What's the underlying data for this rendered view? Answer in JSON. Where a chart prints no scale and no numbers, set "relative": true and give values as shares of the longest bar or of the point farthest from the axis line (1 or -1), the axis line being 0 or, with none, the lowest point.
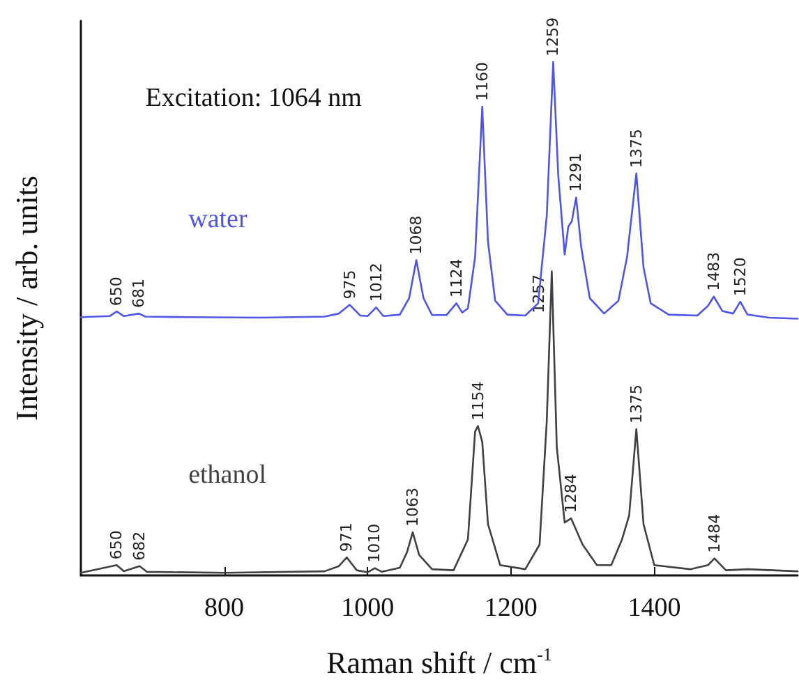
{
  "chart_data": {
    "type": "line",
    "relative": true,
    "xlabel": "Raman shift / cm$^{-1}$",
    "ylabel": "Intensity / arb. units",
    "xlim": [
      600,
      1600
    ],
    "xticks": [
      800,
      1000,
      1200,
      1400
    ],
    "grid": false,
    "legend": false,
    "marker": "none",
    "line_style": "solid",
    "series": [
      {
        "name": "water",
        "color": "#4f55e8",
        "x": [
          600,
          640,
          650,
          660,
          681,
          690,
          750,
          850,
          940,
          960,
          975,
          990,
          1000,
          1012,
          1022,
          1045,
          1058,
          1068,
          1078,
          1090,
          1110,
          1124,
          1132,
          1140,
          1150,
          1160,
          1168,
          1178,
          1195,
          1220,
          1238,
          1250,
          1259,
          1266,
          1275,
          1280,
          1285,
          1291,
          1298,
          1310,
          1330,
          1350,
          1362,
          1375,
          1385,
          1395,
          1420,
          1460,
          1475,
          1483,
          1495,
          1510,
          1520,
          1530,
          1560,
          1600
        ],
        "values": [
          0.503,
          0.505,
          0.514,
          0.505,
          0.51,
          0.504,
          0.503,
          0.502,
          0.504,
          0.51,
          0.527,
          0.506,
          0.505,
          0.522,
          0.505,
          0.508,
          0.54,
          0.614,
          0.54,
          0.507,
          0.507,
          0.53,
          0.512,
          0.52,
          0.62,
          0.913,
          0.65,
          0.535,
          0.508,
          0.506,
          0.53,
          0.7,
          1.0,
          0.78,
          0.625,
          0.679,
          0.69,
          0.736,
          0.64,
          0.54,
          0.51,
          0.535,
          0.62,
          0.783,
          0.6,
          0.53,
          0.508,
          0.506,
          0.525,
          0.543,
          0.515,
          0.51,
          0.533,
          0.508,
          0.502,
          0.5
        ]
      },
      {
        "name": "ethanol",
        "color": "#404040",
        "x": [
          600,
          650,
          660,
          682,
          692,
          800,
          940,
          960,
          971,
          985,
          1000,
          1010,
          1020,
          1045,
          1055,
          1063,
          1072,
          1090,
          1120,
          1140,
          1150,
          1154,
          1160,
          1168,
          1185,
          1220,
          1240,
          1250,
          1257,
          1264,
          1275,
          1284,
          1300,
          1320,
          1340,
          1355,
          1365,
          1375,
          1385,
          1400,
          1450,
          1475,
          1484,
          1500,
          1530,
          1600
        ],
        "values": [
          0.005,
          0.02,
          0.008,
          0.018,
          0.007,
          0.005,
          0.008,
          0.018,
          0.035,
          0.01,
          0.006,
          0.014,
          0.007,
          0.015,
          0.045,
          0.084,
          0.04,
          0.012,
          0.01,
          0.07,
          0.28,
          0.291,
          0.26,
          0.1,
          0.02,
          0.012,
          0.06,
          0.3,
          0.592,
          0.25,
          0.103,
          0.111,
          0.06,
          0.02,
          0.02,
          0.07,
          0.117,
          0.285,
          0.1,
          0.02,
          0.012,
          0.02,
          0.033,
          0.01,
          0.012,
          0.008
        ]
      }
    ],
    "annotations": [
      "Excitation: 1064 nm",
      {
        "text": "650",
        "x": 650,
        "y": 0.514
      },
      {
        "text": "681",
        "x": 681,
        "y": 0.51
      },
      {
        "text": "975",
        "x": 975,
        "y": 0.527
      },
      {
        "text": "1012",
        "x": 1012,
        "y": 0.522
      },
      {
        "text": "1068",
        "x": 1068,
        "y": 0.614
      },
      {
        "text": "1124",
        "x": 1124,
        "y": 0.53
      },
      {
        "text": "1160",
        "x": 1160,
        "y": 0.913
      },
      {
        "text": "1259",
        "x": 1259,
        "y": 1.0
      },
      {
        "text": "1291",
        "x": 1291,
        "y": 0.736
      },
      {
        "text": "1375",
        "x": 1375,
        "y": 0.783
      },
      {
        "text": "1483",
        "x": 1483,
        "y": 0.543
      },
      {
        "text": "1520",
        "x": 1520,
        "y": 0.533
      },
      {
        "text": "650",
        "x": 650,
        "y": 0.02
      },
      {
        "text": "682",
        "x": 682,
        "y": 0.018
      },
      {
        "text": "971",
        "x": 971,
        "y": 0.035
      },
      {
        "text": "1010",
        "x": 1010,
        "y": 0.014
      },
      {
        "text": "1063",
        "x": 1063,
        "y": 0.084
      },
      {
        "text": "1154",
        "x": 1154,
        "y": 0.291
      },
      {
        "text": "1257",
        "x": 1257,
        "y": 0.592
      },
      {
        "text": "1284",
        "x": 1284,
        "y": 0.111
      },
      {
        "text": "1375",
        "x": 1375,
        "y": 0.285
      },
      {
        "text": "1484",
        "x": 1484,
        "y": 0.033
      }
    ]
  }
}
